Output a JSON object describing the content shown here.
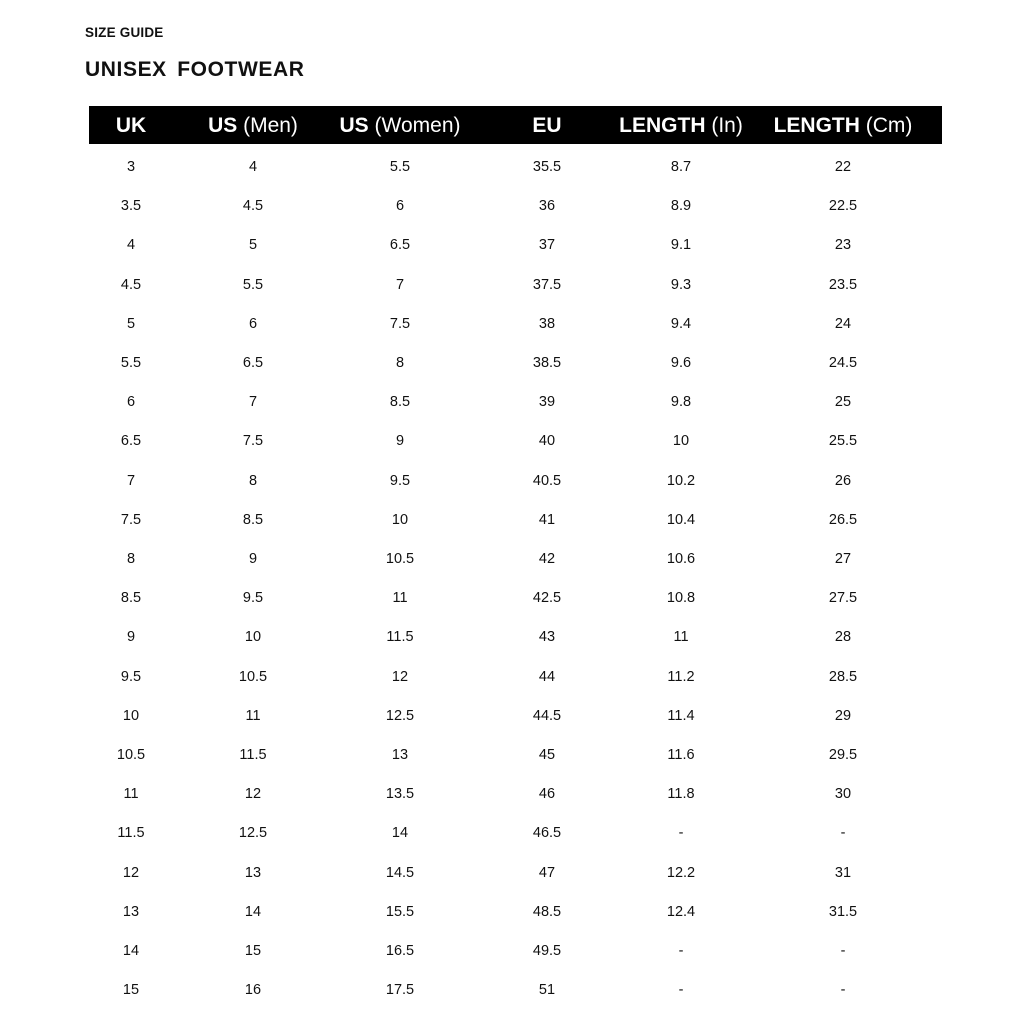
{
  "kicker": "SIZE GUIDE",
  "title": "UNISEX  FOOTWEAR",
  "columns": [
    {
      "bold": "UK",
      "normal": ""
    },
    {
      "bold": "US",
      "normal": " (Men)"
    },
    {
      "bold": "US",
      "normal": " (Women)"
    },
    {
      "bold": "EU",
      "normal": ""
    },
    {
      "bold": "LENGTH",
      "normal": " (In)"
    },
    {
      "bold": "LENGTH",
      "normal": " (Cm)"
    }
  ],
  "rows": [
    [
      "3",
      "4",
      "5.5",
      "35.5",
      "8.7",
      "22"
    ],
    [
      "3.5",
      "4.5",
      "6",
      "36",
      "8.9",
      "22.5"
    ],
    [
      "4",
      "5",
      "6.5",
      "37",
      "9.1",
      "23"
    ],
    [
      "4.5",
      "5.5",
      "7",
      "37.5",
      "9.3",
      "23.5"
    ],
    [
      "5",
      "6",
      "7.5",
      "38",
      "9.4",
      "24"
    ],
    [
      "5.5",
      "6.5",
      "8",
      "38.5",
      "9.6",
      "24.5"
    ],
    [
      "6",
      "7",
      "8.5",
      "39",
      "9.8",
      "25"
    ],
    [
      "6.5",
      "7.5",
      "9",
      "40",
      "10",
      "25.5"
    ],
    [
      "7",
      "8",
      "9.5",
      "40.5",
      "10.2",
      "26"
    ],
    [
      "7.5",
      "8.5",
      "10",
      "41",
      "10.4",
      "26.5"
    ],
    [
      "8",
      "9",
      "10.5",
      "42",
      "10.6",
      "27"
    ],
    [
      "8.5",
      "9.5",
      "11",
      "42.5",
      "10.8",
      "27.5"
    ],
    [
      "9",
      "10",
      "11.5",
      "43",
      "11",
      "28"
    ],
    [
      "9.5",
      "10.5",
      "12",
      "44",
      "11.2",
      "28.5"
    ],
    [
      "10",
      "11",
      "12.5",
      "44.5",
      "11.4",
      "29"
    ],
    [
      "10.5",
      "11.5",
      "13",
      "45",
      "11.6",
      "29.5"
    ],
    [
      "11",
      "12",
      "13.5",
      "46",
      "11.8",
      "30"
    ],
    [
      "11.5",
      "12.5",
      "14",
      "46.5",
      "-",
      "-"
    ],
    [
      "12",
      "13",
      "14.5",
      "47",
      "12.2",
      "31"
    ],
    [
      "13",
      "14",
      "15.5",
      "48.5",
      "12.4",
      "31.5"
    ],
    [
      "14",
      "15",
      "16.5",
      "49.5",
      "-",
      "-"
    ],
    [
      "15",
      "16",
      "17.5",
      "51",
      "-",
      "-"
    ]
  ]
}
